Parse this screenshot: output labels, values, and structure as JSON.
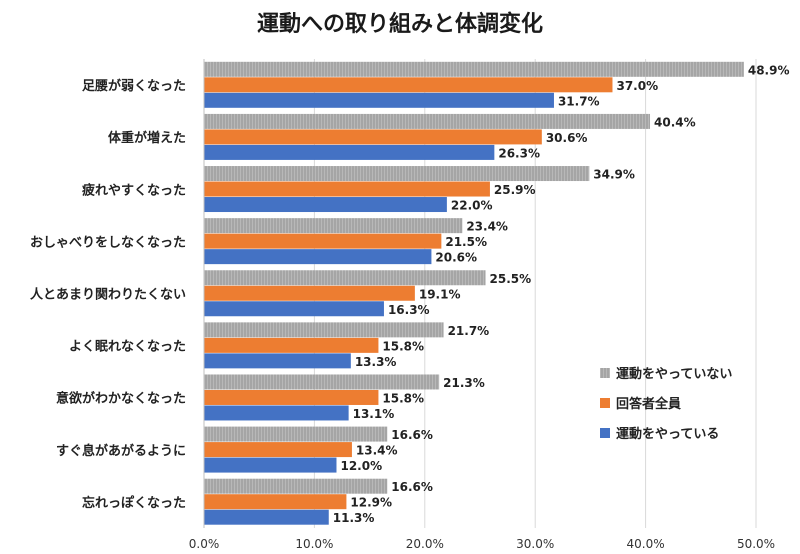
{
  "chart_data": {
    "type": "bar",
    "orientation": "horizontal",
    "title": "運動への取り組みと体調変化",
    "categories": [
      "足腰が弱くなった",
      "体重が増えた",
      "疲れやすくなった",
      "おしゃべりをしなくなった",
      "人とあまり関わりたくない",
      "よく眠れなくなった",
      "意欲がわかなくなった",
      "すぐ息があがるように",
      "忘れっぽくなった"
    ],
    "series": [
      {
        "name": "運動をやっていない",
        "color": "#a5a5a5",
        "values": [
          48.9,
          40.4,
          34.9,
          23.4,
          25.5,
          21.7,
          21.3,
          16.6,
          16.6
        ]
      },
      {
        "name": "回答者全員",
        "color": "#ed7d31",
        "values": [
          37.0,
          30.6,
          25.9,
          21.5,
          19.1,
          15.8,
          15.8,
          13.4,
          12.9
        ]
      },
      {
        "name": "運動をやっている",
        "color": "#4472c4",
        "values": [
          31.7,
          26.3,
          22.0,
          20.6,
          16.3,
          13.3,
          13.1,
          12.0,
          11.3
        ]
      }
    ],
    "x_ticks": [
      "0.0%",
      "10.0%",
      "20.0%",
      "30.0%",
      "40.0%",
      "50.0%"
    ],
    "xlim": [
      0,
      50
    ],
    "value_format": "%",
    "grid": true,
    "legend_position": "right"
  }
}
